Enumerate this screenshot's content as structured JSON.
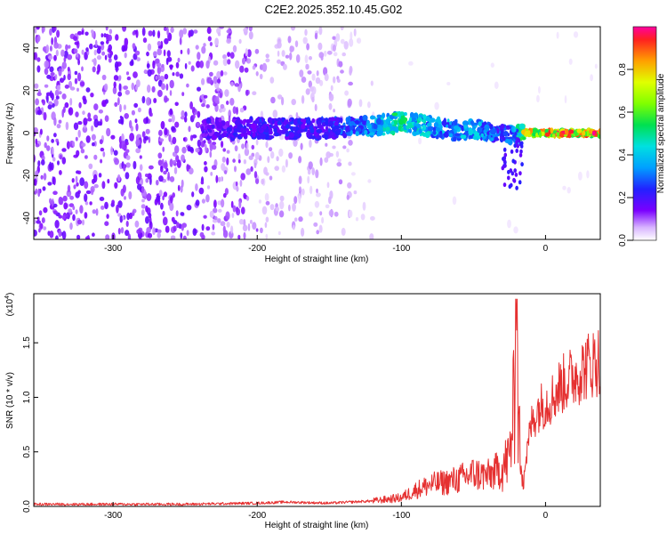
{
  "title": "C2E2.2025.352.10.45.G02",
  "chart_data": [
    {
      "type": "heatmap",
      "xlabel": "Height of straight line (km)",
      "ylabel": "Frequency (Hz)",
      "xlim": [
        -355,
        38
      ],
      "ylim": [
        -50,
        50
      ],
      "x_ticks": [
        -300,
        -200,
        -100,
        0
      ],
      "y_ticks": [
        -40,
        -20,
        0,
        20,
        40
      ],
      "colorbar": {
        "label": "Normalized spectral amplitude",
        "range": [
          0,
          1
        ],
        "ticks": [
          0.0,
          0.2,
          0.4,
          0.6,
          0.8
        ]
      },
      "ridge": {
        "x": [
          -235,
          -200,
          -160,
          -130,
          -110,
          -100,
          -90,
          -80,
          -70,
          -60,
          -50,
          -40,
          -30,
          -20,
          -15,
          0,
          38
        ],
        "freq": [
          2,
          2,
          2,
          3,
          4,
          5,
          4,
          3,
          2,
          1,
          2,
          1,
          0,
          -1,
          0,
          0,
          0
        ],
        "amplitude": [
          0.2,
          0.25,
          0.25,
          0.35,
          0.5,
          0.55,
          0.5,
          0.45,
          0.4,
          0.4,
          0.45,
          0.35,
          0.3,
          0.4,
          0.8,
          0.95,
          0.95
        ]
      }
    },
    {
      "type": "line",
      "xlabel": "Height of straight line (km)",
      "ylabel": "SNR (10 * v/v)",
      "y_multiplier": "(x10",
      "y_multiplier_exp": "4",
      "xlim": [
        -355,
        38
      ],
      "ylim": [
        0,
        1.95
      ],
      "x_ticks": [
        -300,
        -200,
        -100,
        0
      ],
      "y_ticks": [
        0.0,
        0.5,
        1.0,
        1.5
      ],
      "color": "#e53030",
      "series": [
        {
          "x": [
            -355,
            -300,
            -250,
            -200,
            -180,
            -150,
            -120,
            -100,
            -90,
            -80,
            -70,
            -60,
            -50,
            -40,
            -30,
            -25,
            -22,
            -20,
            -18,
            -15,
            -10,
            -5,
            0,
            5,
            10,
            15,
            20,
            25,
            30,
            35,
            38
          ],
          "values": [
            0.02,
            0.02,
            0.02,
            0.03,
            0.04,
            0.03,
            0.05,
            0.08,
            0.15,
            0.2,
            0.22,
            0.25,
            0.3,
            0.28,
            0.35,
            0.45,
            0.9,
            1.2,
            0.6,
            0.3,
            0.75,
            0.9,
            0.95,
            1.0,
            1.1,
            1.15,
            1.2,
            1.25,
            1.3,
            1.33,
            1.35
          ]
        }
      ]
    }
  ]
}
